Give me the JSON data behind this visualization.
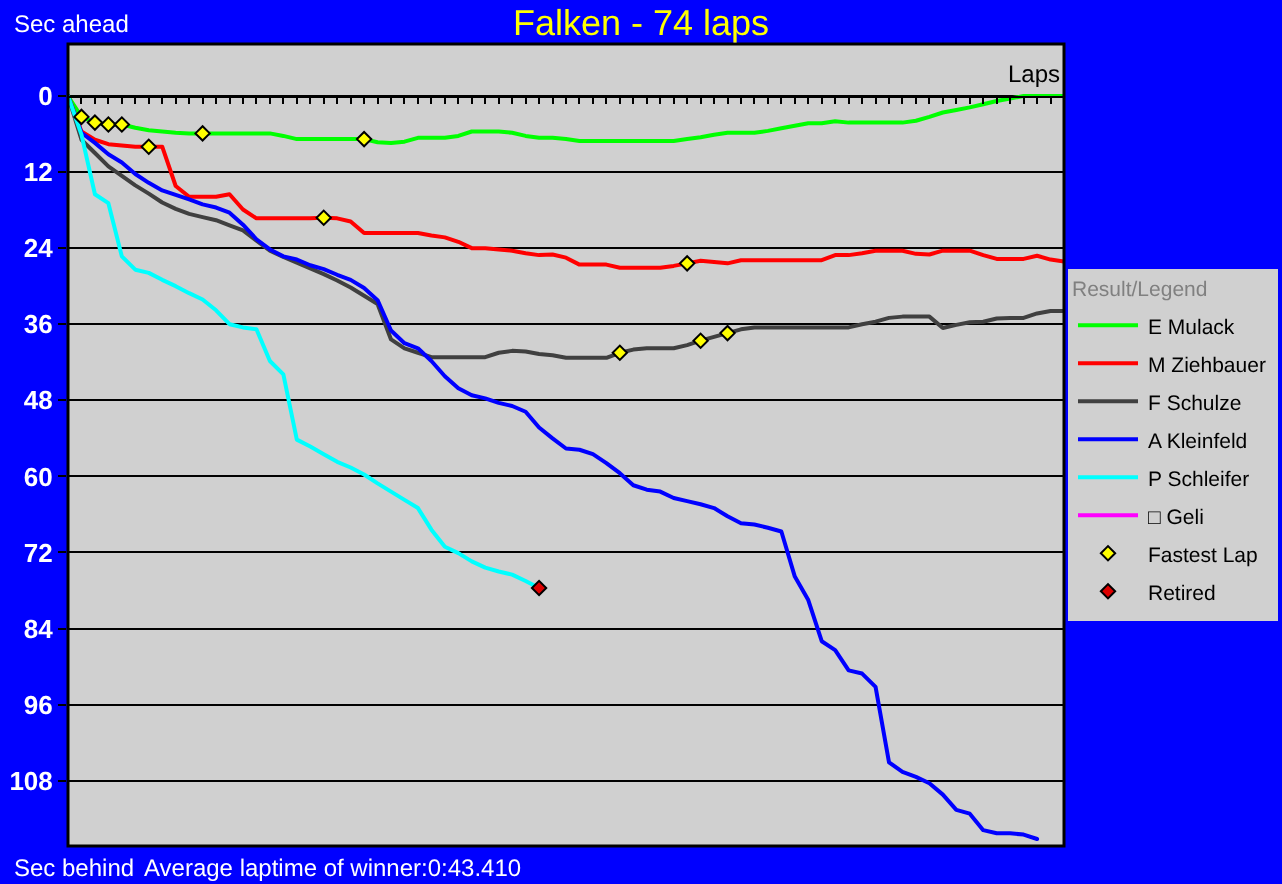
{
  "chart_data": {
    "type": "line",
    "title": "Falken - 74 laps",
    "xlabel": "Laps",
    "ylabel": "Sec ahead",
    "legend_title": "Result/Legend",
    "annotations": [
      "Sec behind",
      "Average laptime of winner:0:43.410"
    ],
    "categories": [
      null,
      null,
      null,
      null,
      null,
      null,
      null,
      null,
      null,
      null,
      null,
      null,
      null,
      null,
      null,
      null,
      null,
      null,
      null,
      null,
      null,
      null,
      null,
      null,
      null,
      null,
      null,
      null,
      null,
      null,
      null,
      null,
      null,
      null,
      null,
      null,
      null,
      null,
      null,
      null,
      null,
      null,
      null,
      null,
      null,
      null,
      null,
      null,
      null,
      null,
      null,
      null,
      null,
      null,
      null,
      null,
      null,
      null,
      null,
      null,
      null,
      null,
      null,
      null,
      null,
      null,
      null,
      null,
      null,
      null,
      null,
      null,
      null,
      null,
      null
    ],
    "ylim": [
      118.3,
      -8.2
    ],
    "yticks": [
      0,
      12,
      24,
      36,
      48,
      60,
      72,
      84,
      96,
      108
    ],
    "grid": "y",
    "legend": "right",
    "tick_labels": "y",
    "series": [
      {
        "name": "E Mulack",
        "color": "#00ff00",
        "values": [
          0,
          3.3,
          4.2,
          4.5,
          4.5,
          5.0,
          5.4,
          5.6,
          5.8,
          5.9,
          5.9,
          5.9,
          5.9,
          5.9,
          5.9,
          5.9,
          6.3,
          6.8,
          6.8,
          6.8,
          6.8,
          6.8,
          6.8,
          7.3,
          7.4,
          7.2,
          6.6,
          6.6,
          6.6,
          6.3,
          5.6,
          5.6,
          5.6,
          5.8,
          6.3,
          6.6,
          6.6,
          6.8,
          7.1,
          7.1,
          7.1,
          7.1,
          7.1,
          7.1,
          7.1,
          7.1,
          6.8,
          6.5,
          6.1,
          5.8,
          5.8,
          5.8,
          5.5,
          5.1,
          4.7,
          4.3,
          4.3,
          4.0,
          4.2,
          4.2,
          4.2,
          4.2,
          4.2,
          3.9,
          3.3,
          2.6,
          2.2,
          1.8,
          1.3,
          0.8,
          0.4,
          0,
          0,
          0,
          0
        ]
      },
      {
        "name": "M Ziehbauer",
        "color": "#ff0000",
        "values": [
          0,
          5.6,
          6.9,
          7.6,
          7.8,
          8.0,
          8.0,
          8.0,
          14.2,
          15.9,
          15.9,
          15.9,
          15.5,
          17.9,
          19.3,
          19.3,
          19.3,
          19.3,
          19.3,
          19.2,
          19.3,
          19.8,
          21.6,
          21.6,
          21.6,
          21.6,
          21.6,
          22.0,
          22.3,
          23.0,
          24.0,
          24.0,
          24.2,
          24.4,
          24.8,
          25.1,
          25.0,
          25.5,
          26.6,
          26.6,
          26.6,
          27.1,
          27.1,
          27.1,
          27.1,
          26.8,
          26.4,
          26.0,
          26.2,
          26.4,
          25.9,
          25.9,
          25.9,
          25.9,
          25.9,
          25.9,
          25.9,
          25.1,
          25.1,
          24.8,
          24.4,
          24.4,
          24.4,
          24.9,
          25.0,
          24.4,
          24.4,
          24.4,
          25.1,
          25.7,
          25.7,
          25.7,
          25.2,
          25.8,
          26.1
        ]
      },
      {
        "name": "F Schulze",
        "color": "#404040",
        "values": [
          0,
          6.9,
          9.0,
          11.1,
          12.6,
          14.1,
          15.4,
          16.8,
          17.8,
          18.6,
          19.1,
          19.6,
          20.4,
          21.2,
          22.8,
          24.4,
          25.4,
          26.3,
          27.2,
          28.1,
          29.1,
          30.2,
          31.5,
          32.8,
          38.4,
          39.8,
          40.5,
          41.2,
          41.2,
          41.2,
          41.2,
          41.2,
          40.5,
          40.2,
          40.3,
          40.7,
          40.9,
          41.3,
          41.3,
          41.3,
          41.3,
          40.5,
          40.0,
          39.8,
          39.8,
          39.8,
          39.3,
          38.6,
          38.0,
          37.4,
          36.8,
          36.5,
          36.5,
          36.5,
          36.5,
          36.5,
          36.5,
          36.5,
          36.5,
          36.0,
          35.6,
          35.0,
          34.8,
          34.8,
          34.8,
          36.6,
          36.1,
          35.7,
          35.6,
          35.1,
          35.0,
          35.0,
          34.3,
          33.9,
          33.9
        ]
      },
      {
        "name": "A Kleinfeld",
        "color": "#0000ff",
        "values": [
          0,
          5.8,
          7.4,
          9.2,
          10.5,
          12.3,
          13.7,
          14.9,
          15.6,
          16.3,
          17.1,
          17.6,
          18.4,
          20.3,
          22.6,
          24.2,
          25.3,
          25.8,
          26.7,
          27.3,
          28.2,
          29.0,
          30.3,
          32.2,
          37.0,
          39.0,
          39.8,
          41.8,
          44.2,
          46.1,
          47.2,
          47.7,
          48.4,
          48.9,
          49.8,
          52.3,
          54.0,
          55.6,
          55.8,
          56.5,
          57.9,
          59.5,
          61.4,
          62.1,
          62.4,
          63.4,
          63.9,
          64.4,
          65.0,
          66.3,
          67.4,
          67.6,
          68.1,
          68.7,
          75.8,
          79.5,
          86.0,
          87.4,
          90.6,
          91.1,
          93.2,
          105.1,
          106.6,
          107.4,
          108.4,
          110.2,
          112.6,
          113.2,
          115.8,
          116.3,
          116.3,
          116.5,
          117.2,
          null,
          null
        ]
      },
      {
        "name": "P Schleifer",
        "color": "#00ffff",
        "values": [
          0,
          6.1,
          15.5,
          16.9,
          25.3,
          27.4,
          27.9,
          29.0,
          30.0,
          31.1,
          32.1,
          33.8,
          36.0,
          36.5,
          36.8,
          41.8,
          43.9,
          54.2,
          55.3,
          56.5,
          57.7,
          58.6,
          59.7,
          61.1,
          62.4,
          63.7,
          65.0,
          68.4,
          71.1,
          72.1,
          73.4,
          74.4,
          75.0,
          75.5,
          76.5,
          77.6,
          null,
          null,
          null,
          null,
          null,
          null,
          null,
          null,
          null,
          null,
          null,
          null,
          null,
          null,
          null,
          null,
          null,
          null,
          null,
          null,
          null,
          null,
          null,
          null,
          null,
          null,
          null,
          null,
          null,
          null,
          null,
          null,
          null,
          null,
          null,
          null,
          null,
          null,
          null
        ]
      },
      {
        "name": "□ Geli",
        "color": "#ff00ff",
        "values": [
          null,
          null,
          null,
          null,
          null,
          null,
          null,
          null,
          null,
          null,
          null,
          null,
          null,
          null,
          null,
          null,
          null,
          null,
          null,
          null,
          null,
          null,
          null,
          null,
          null,
          null,
          null,
          null,
          null,
          null,
          null,
          null,
          null,
          null,
          null,
          null,
          null,
          null,
          null,
          null,
          null,
          null,
          null,
          null,
          null,
          null,
          null,
          null,
          null,
          null,
          null,
          null,
          null,
          null,
          null,
          null,
          null,
          null,
          null,
          null,
          null,
          null,
          null,
          null,
          null,
          null,
          null,
          null,
          null,
          null,
          null,
          null,
          null,
          null,
          null
        ]
      },
      {
        "name": "Fastest Lap",
        "type": "scatter",
        "marker": "diamond",
        "color": "#ffff00",
        "values": [
          null,
          3.3,
          4.2,
          4.5,
          4.5,
          null,
          8.0,
          null,
          null,
          null,
          5.9,
          null,
          null,
          null,
          null,
          null,
          null,
          null,
          null,
          19.2,
          null,
          null,
          6.8,
          null,
          null,
          null,
          null,
          null,
          null,
          null,
          null,
          null,
          null,
          null,
          null,
          null,
          null,
          null,
          null,
          null,
          null,
          40.5,
          null,
          null,
          null,
          null,
          26.4,
          38.6,
          null,
          37.4,
          null,
          null,
          null,
          null,
          null,
          null,
          null,
          null,
          null,
          null,
          null,
          null,
          null,
          null,
          null,
          null,
          null,
          null,
          null,
          null,
          null,
          null,
          null,
          null,
          null
        ]
      },
      {
        "name": "Retired",
        "type": "scatter",
        "marker": "diamond",
        "color": "#dd0000",
        "values": [
          null,
          null,
          null,
          null,
          null,
          null,
          null,
          null,
          null,
          null,
          null,
          null,
          null,
          null,
          null,
          null,
          null,
          null,
          null,
          null,
          null,
          null,
          null,
          null,
          null,
          null,
          null,
          null,
          null,
          null,
          null,
          null,
          null,
          null,
          null,
          77.6,
          null,
          null,
          null,
          null,
          null,
          null,
          null,
          null,
          null,
          null,
          null,
          null,
          null,
          null,
          null,
          null,
          null,
          null,
          null,
          null,
          null,
          null,
          null,
          null,
          null,
          null,
          null,
          null,
          null,
          null,
          null,
          null,
          null,
          null,
          null,
          null,
          null,
          null,
          null
        ]
      }
    ]
  }
}
